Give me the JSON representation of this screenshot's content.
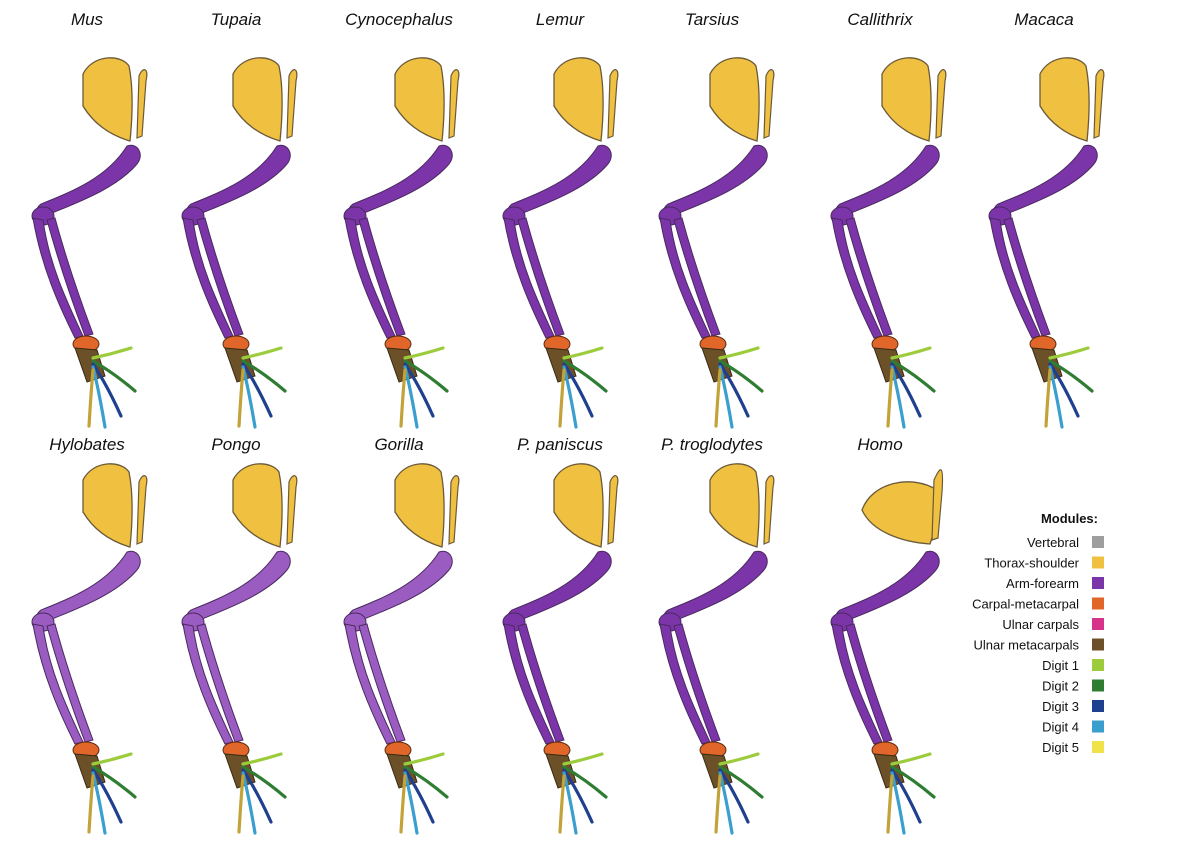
{
  "taxa_row1": [
    "Mus",
    "Tupaia",
    "Cynocephalus",
    "Lemur",
    "Tarsius",
    "Callithrix",
    "Macaca"
  ],
  "taxa_row2": [
    "Hylobates",
    "Pongo",
    "Gorilla",
    "P. paniscus",
    "P. troglodytes",
    "Homo"
  ],
  "legend": {
    "title": "Modules:",
    "items": [
      {
        "label": "Vertebral",
        "color": "#9e9e9e"
      },
      {
        "label": "Thorax-shoulder",
        "color": "#f0c040"
      },
      {
        "label": "Arm-forearm",
        "color": "#7b35a8"
      },
      {
        "label": "Carpal-metacarpal",
        "color": "#e0662a"
      },
      {
        "label": "Ulnar carpals",
        "color": "#d6348a"
      },
      {
        "label": "Ulnar metacarpals",
        "color": "#6b5028"
      },
      {
        "label": "Digit 1",
        "color": "#9ccc3c"
      },
      {
        "label": "Digit 2",
        "color": "#2e7d32"
      },
      {
        "label": "Digit 3",
        "color": "#1f3f8f"
      },
      {
        "label": "Digit 4",
        "color": "#3a9fcf"
      },
      {
        "label": "Digit 5",
        "color": "#f2e24a"
      }
    ]
  },
  "colors": {
    "scapula": "#f0c040",
    "arm_dark": "#7b35a8",
    "arm_light": "#9a5cc0",
    "outline": "#6b5a3a",
    "digit_tan": "#c2a33a"
  }
}
